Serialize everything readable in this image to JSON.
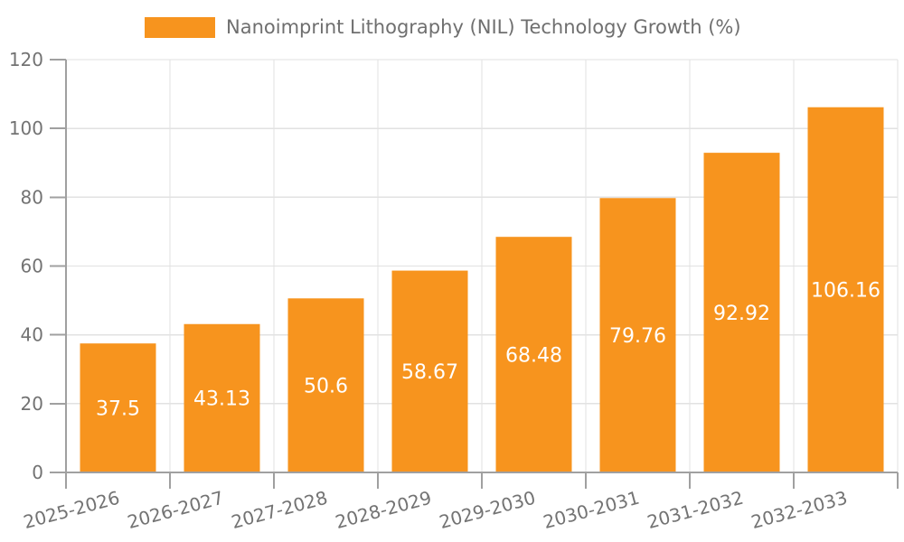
{
  "chart_data": {
    "type": "bar",
    "title": "Nanoimprint Lithography (NIL) Technology Growth (%)",
    "categories": [
      "2025-2026",
      "2026-2027",
      "2027-2028",
      "2028-2029",
      "2029-2030",
      "2030-2031",
      "2031-2032",
      "2032-2033"
    ],
    "values": [
      37.5,
      43.13,
      50.6,
      58.67,
      68.48,
      79.76,
      92.92,
      106.16
    ],
    "value_labels": [
      "37.5",
      "43.13",
      "50.6",
      "58.67",
      "68.48",
      "79.76",
      "92.92",
      "106.16"
    ],
    "xlabel": "",
    "ylabel": "",
    "ylim": [
      0,
      120
    ],
    "yticks": [
      0,
      20,
      40,
      60,
      80,
      100,
      120
    ],
    "xtick_rotation_deg": -15,
    "grid": true,
    "legend_position": "top",
    "colors": {
      "bar": "#F7941E",
      "bar_value_text": "#FFFFFF",
      "axis_text": "#737373",
      "legend_text": "#6F6F6F",
      "axis_line": "#A0A0A0",
      "grid_line": "#E2E2E2",
      "background": "#FFFFFF"
    }
  }
}
